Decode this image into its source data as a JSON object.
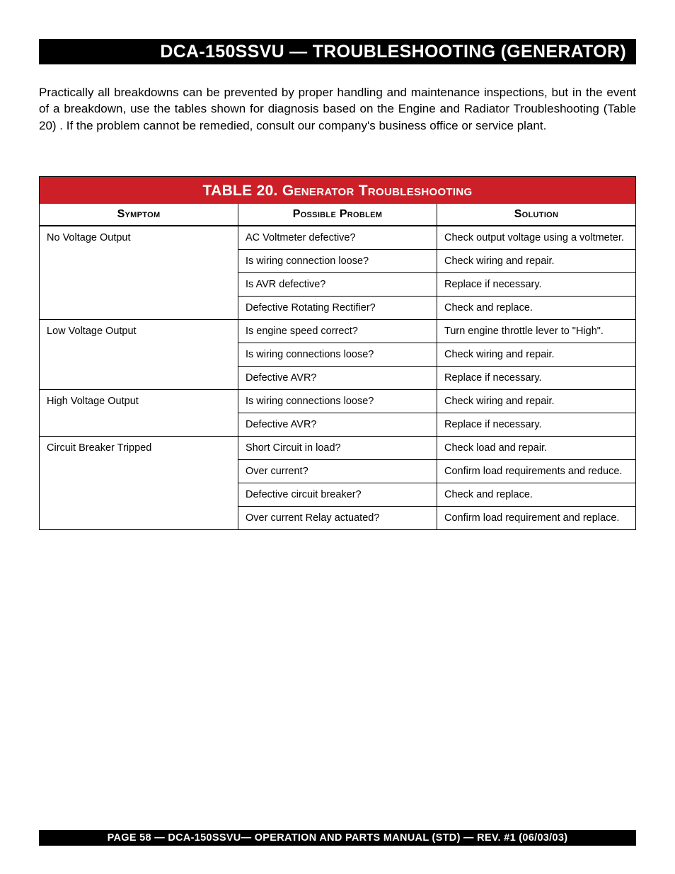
{
  "header": {
    "title": "DCA-150SSVU — TROUBLESHOOTING (GENERATOR)"
  },
  "intro": {
    "text": "Practically all breakdowns can be prevented by proper handling and maintenance inspections, but in the event of a breakdown, use the tables  shown for diagnosis based on the Engine and Radiator  Troubleshooting (Table 20) . If the problem cannot be remedied,  consult our company's business office or service plant."
  },
  "table": {
    "title": "TABLE 20.  Generator Troubleshooting",
    "columns": [
      "Symptom",
      "Possible Problem",
      "Solution"
    ],
    "groups": [
      {
        "symptom": "No Voltage Output",
        "rows": [
          {
            "problem": "AC Voltmeter defective?",
            "solution": "Check output voltage using a voltmeter."
          },
          {
            "problem": "Is wiring connection loose?",
            "solution": "Check wiring and repair."
          },
          {
            "problem": "Is AVR defective?",
            "solution": "Replace if necessary."
          },
          {
            "problem": "Defective Rotating Rectifier?",
            "solution": "Check and replace."
          }
        ]
      },
      {
        "symptom": "Low Voltage Output",
        "rows": [
          {
            "problem": "Is engine speed correct?",
            "solution": "Turn engine throttle lever to \"High\"."
          },
          {
            "problem": "Is wiring connections loose?",
            "solution": "Check wiring and repair."
          },
          {
            "problem": "Defective AVR?",
            "solution": "Replace if necessary."
          }
        ]
      },
      {
        "symptom": "High Voltage Output",
        "rows": [
          {
            "problem": "Is wiring connections loose?",
            "solution": "Check wiring and repair."
          },
          {
            "problem": "Defective AVR?",
            "solution": "Replace if necessary."
          }
        ]
      },
      {
        "symptom": "Circuit Breaker Tripped",
        "rows": [
          {
            "problem": "Short Circuit in load?",
            "solution": "Check load and repair."
          },
          {
            "problem": "Over current?",
            "solution": "Confirm load requirements and reduce."
          },
          {
            "problem": "Defective circuit breaker?",
            "solution": "Check and replace."
          },
          {
            "problem": "Over current Relay actuated?",
            "solution": "Confirm load requirement and replace."
          }
        ]
      }
    ]
  },
  "footer": {
    "text": "PAGE 58 — DCA-150SSVU—  OPERATION AND PARTS  MANUAL (STD) — REV. #1  (06/03/03)"
  },
  "colors": {
    "title_bg": "#000000",
    "title_fg": "#ffffff",
    "table_title_bg": "#cc1f27",
    "table_title_fg": "#ffffff",
    "body_text": "#000000",
    "border": "#000000"
  }
}
